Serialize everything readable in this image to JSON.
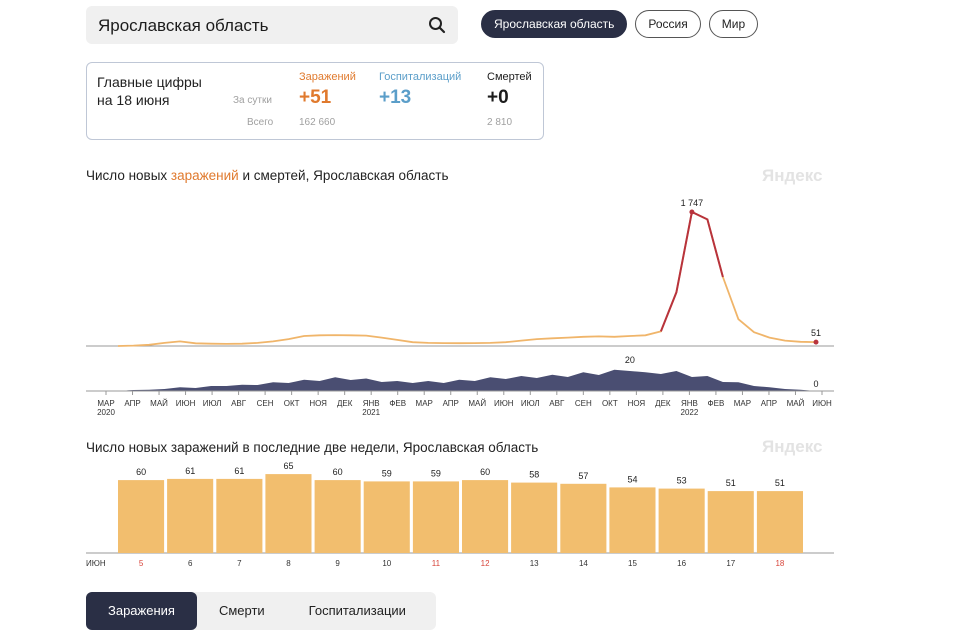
{
  "search": {
    "value": "Ярославская область"
  },
  "regions": [
    {
      "label": "Ярославская область",
      "active": true
    },
    {
      "label": "Россия",
      "active": false
    },
    {
      "label": "Мир",
      "active": false
    }
  ],
  "summary": {
    "title_line1": "Главные цифры",
    "title_line2": "на 18 июня",
    "row_day": "За сутки",
    "row_total": "Всего",
    "infections": {
      "label": "Заражений",
      "day": "+51",
      "total": "162 660"
    },
    "hospital": {
      "label": "Госпитализаций",
      "day": "+13",
      "total": ""
    },
    "deaths": {
      "label": "Смертей",
      "day": "+0",
      "total": "2 810"
    }
  },
  "colors": {
    "infection": "#e07a2e",
    "hospital": "#5b9ec9",
    "dark": "#2a2f45",
    "bar": "#f2be6e",
    "line": "#f0b56a",
    "peak": "#b8333c",
    "area": "#4a4e72"
  },
  "chart1": {
    "title_pre": "Число новых ",
    "title_orange": "заражений",
    "title_post": " и смертей, Ярославская область",
    "watermark": "Яндекс"
  },
  "chart2": {
    "title": "Число новых заражений в последние две недели, Ярославская область",
    "watermark": "Яндекс"
  },
  "chart_data": [
    {
      "type": "line",
      "title": "Число новых заражений и смертей, Ярославская область",
      "series": [
        {
          "name": "Заражения",
          "x_note": "март 2020 – июнь 2022",
          "peak_label": "1 747",
          "last_label": "51",
          "values": [
            0,
            5,
            15,
            40,
            60,
            35,
            30,
            28,
            30,
            40,
            60,
            90,
            130,
            140,
            142,
            140,
            135,
            110,
            80,
            50,
            40,
            38,
            36,
            38,
            40,
            50,
            70,
            90,
            100,
            110,
            120,
            125,
            120,
            130,
            140,
            190,
            700,
            1747,
            1650,
            900,
            350,
            180,
            110,
            70,
            55,
            51
          ]
        },
        {
          "name": "Смерти",
          "peak_label": "20",
          "last_label": "0",
          "values": [
            0,
            1,
            1,
            2,
            3,
            3,
            4,
            5,
            5,
            6,
            7,
            8,
            9,
            10,
            11,
            11,
            10,
            9,
            8,
            8,
            8,
            8,
            9,
            10,
            11,
            12,
            12,
            13,
            13,
            14,
            15,
            16,
            17,
            20,
            15,
            17,
            16,
            14,
            12,
            9,
            7,
            5,
            3,
            2,
            1,
            0
          ]
        }
      ],
      "x_ticks": [
        "МАР",
        "АПР",
        "МАЙ",
        "ИЮН",
        "ИЮЛ",
        "АВГ",
        "СЕН",
        "ОКТ",
        "НОЯ",
        "ДЕК",
        "ЯНВ",
        "ФЕВ",
        "МАР",
        "АПР",
        "МАЙ",
        "ИЮН",
        "ИЮЛ",
        "АВГ",
        "СЕН",
        "ОКТ",
        "НОЯ",
        "ДЕК",
        "ЯНВ",
        "ФЕВ",
        "МАР",
        "АПР",
        "МАЙ",
        "ИЮН"
      ],
      "year_labels": [
        "2020",
        "2021",
        "2022"
      ]
    },
    {
      "type": "bar",
      "title": "Число новых заражений в последние две недели, Ярославская область",
      "month_label": "ИЮН",
      "categories": [
        "5",
        "6",
        "7",
        "8",
        "9",
        "10",
        "11",
        "12",
        "13",
        "14",
        "15",
        "16",
        "17",
        "18"
      ],
      "weekend": [
        true,
        false,
        false,
        false,
        false,
        false,
        true,
        true,
        false,
        false,
        false,
        false,
        false,
        true
      ],
      "values": [
        60,
        61,
        61,
        65,
        60,
        59,
        59,
        60,
        58,
        57,
        54,
        53,
        51,
        51
      ],
      "ylim": [
        0,
        70
      ]
    }
  ],
  "tabs": [
    {
      "label": "Заражения",
      "active": true
    },
    {
      "label": "Смерти",
      "active": false
    },
    {
      "label": "Госпитализации",
      "active": false
    }
  ]
}
